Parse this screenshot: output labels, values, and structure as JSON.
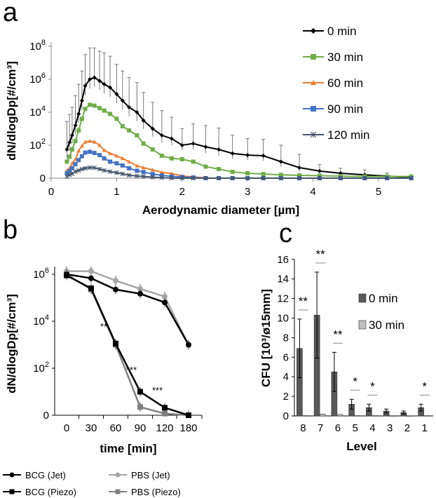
{
  "chart_data": [
    {
      "panel": "a",
      "type": "line",
      "xlabel": "Aerodynamic diameter [µm]",
      "ylabel": "dN/dlogDp[#/cm³]",
      "xlim": [
        0,
        5.6
      ],
      "ylim_log10": [
        0,
        8.5
      ],
      "xticks": [
        "0",
        "1",
        "2",
        "3",
        "4",
        "5"
      ],
      "yticks": [
        {
          "label": "0",
          "log": 0
        },
        {
          "label": "10",
          "sup": "2",
          "log": 2
        },
        {
          "label": "10",
          "sup": "4",
          "log": 4
        },
        {
          "label": "10",
          "sup": "6",
          "log": 6
        },
        {
          "label": "10",
          "sup": "8",
          "log": 8
        }
      ],
      "x": [
        0.24,
        0.28,
        0.32,
        0.37,
        0.42,
        0.47,
        0.52,
        0.59,
        0.66,
        0.74,
        0.81,
        0.9,
        1.0,
        1.09,
        1.19,
        1.31,
        1.41,
        1.55,
        1.69,
        1.84,
        2.0,
        2.17,
        2.36,
        2.56,
        2.77,
        3.0,
        3.24,
        3.51,
        3.79,
        4.1,
        4.42,
        4.79,
        5.13,
        5.5
      ],
      "series": [
        {
          "name": "0 min",
          "color": "#000000",
          "marker": "diamond",
          "log10_values": [
            1.74,
            2.17,
            2.6,
            3.2,
            3.9,
            4.7,
            5.6,
            6.0,
            6.1,
            5.9,
            5.7,
            5.5,
            5.1,
            4.7,
            4.3,
            4.0,
            3.5,
            3.0,
            2.6,
            2.4,
            2.0,
            2.1,
            1.9,
            1.74,
            1.5,
            1.4,
            1.36,
            1.0,
            0.64,
            0.43,
            0.3,
            0.2,
            0.12,
            0.05
          ],
          "log10_err": [
            1.7,
            1.7,
            1.7,
            1.8,
            1.8,
            1.8,
            1.9,
            1.9,
            1.8,
            1.8,
            1.9,
            1.9,
            1.8,
            1.8,
            1.8,
            1.8,
            1.7,
            1.6,
            1.5,
            1.3,
            1.0,
            1.2,
            1.3,
            1.3,
            1.1,
            1.0,
            1.0,
            1.0,
            0.8,
            0.4,
            0.3,
            0.3,
            0.2,
            0.1
          ]
        },
        {
          "name": "30 min",
          "color": "#70ad47",
          "marker": "square",
          "log10_values": [
            1.0,
            1.3,
            1.74,
            2.25,
            2.9,
            3.6,
            4.2,
            4.45,
            4.4,
            4.25,
            4.1,
            3.9,
            3.6,
            3.15,
            2.9,
            2.6,
            2.1,
            1.74,
            1.36,
            1.2,
            1.15,
            1.0,
            0.7,
            0.55,
            0.38,
            0.3,
            0.25,
            0.2,
            0.17,
            0.15,
            0.12,
            0.1,
            0.1,
            0.1
          ]
        },
        {
          "name": "60 min",
          "color": "#ed7d31",
          "marker": "triangle",
          "log10_values": [
            0.47,
            0.6,
            0.9,
            1.15,
            1.66,
            1.96,
            2.2,
            2.25,
            2.2,
            2.0,
            1.7,
            1.5,
            1.36,
            1.2,
            1.0,
            0.75,
            0.64,
            0.5,
            0.35,
            0.28,
            0.14,
            0.07,
            0.02,
            0,
            0,
            0,
            0,
            0,
            0,
            0,
            0,
            0,
            0,
            0
          ]
        },
        {
          "name": "90 min",
          "color": "#4472c4",
          "marker": "square",
          "log10_values": [
            0.3,
            0.43,
            0.6,
            0.85,
            1.1,
            1.33,
            1.55,
            1.6,
            1.53,
            1.4,
            1.2,
            1.0,
            0.9,
            0.77,
            0.6,
            0.45,
            0.37,
            0.25,
            0.17,
            0.11,
            0.07,
            0.04,
            0,
            0,
            0,
            0,
            0,
            0,
            0,
            0,
            0,
            0,
            0,
            0
          ]
        },
        {
          "name": "120  min",
          "color": "#44546a",
          "marker": "star",
          "log10_values": [
            0.1,
            0.2,
            0.27,
            0.4,
            0.47,
            0.55,
            0.6,
            0.64,
            0.63,
            0.55,
            0.47,
            0.4,
            0.33,
            0.26,
            0.18,
            0.13,
            0.1,
            0.06,
            0.03,
            0,
            0,
            0,
            0,
            0,
            0,
            0,
            0,
            0,
            0,
            0,
            0,
            0,
            0,
            0
          ]
        }
      ]
    },
    {
      "panel": "b",
      "type": "line",
      "xlabel": "time [min]",
      "ylabel": "dN/dlogDp[#/cm³]",
      "categories": [
        "0",
        "30",
        "60",
        "90",
        "120",
        "180"
      ],
      "yticks": [
        {
          "label": "0",
          "log": 0
        },
        {
          "label": "10",
          "sup": "2",
          "log": 2
        },
        {
          "label": "10",
          "sup": "4",
          "log": 4
        },
        {
          "label": "10",
          "sup": "6",
          "log": 6
        }
      ],
      "series": [
        {
          "name": "BCG (Jet)",
          "color": "#000000",
          "marker": "circle",
          "log10_values": [
            6.0,
            5.83,
            5.35,
            5.17,
            4.8,
            3.0
          ]
        },
        {
          "name": "PBS (Jet)",
          "color": "#a6a6a6",
          "marker": "circle",
          "log10_values": [
            6.13,
            6.13,
            5.73,
            5.38,
            5.05,
            2.98
          ]
        },
        {
          "name": "BCG (Piezo)",
          "color": "#000000",
          "marker": "square",
          "log10_values": [
            5.95,
            5.4,
            3.05,
            1.0,
            0.32,
            0
          ]
        },
        {
          "name": "PBS (Piezo)",
          "color": "#808080",
          "marker": "square",
          "log10_values": [
            6.0,
            5.35,
            3.0,
            0.35,
            0.07,
            0
          ]
        }
      ],
      "annotations": [
        {
          "category": "60",
          "text": "**"
        },
        {
          "category": "90",
          "text": "***"
        },
        {
          "category": "120",
          "text": "***"
        }
      ]
    },
    {
      "panel": "c",
      "type": "bar",
      "xlabel": "Level",
      "ylabel": "CFU [10³/ø15mm]",
      "ylim": [
        0,
        16
      ],
      "yticks": [
        0,
        2,
        4,
        6,
        8,
        10,
        12,
        14,
        16
      ],
      "categories": [
        "8",
        "7",
        "6",
        "5",
        "4",
        "3",
        "2",
        "1"
      ],
      "series": [
        {
          "name": "0 min",
          "color": "#595959",
          "values": [
            6.9,
            10.3,
            4.5,
            1.2,
            0.85,
            0.5,
            0.35,
            0.85
          ],
          "err": [
            3.0,
            4.4,
            2.0,
            0.5,
            0.35,
            0.2,
            0.15,
            0.35
          ]
        },
        {
          "name": "30 min",
          "color": "#bfbfbf",
          "values": [
            0.05,
            0.2,
            0.15,
            0.05,
            0.05,
            0.03,
            0.02,
            0.05
          ],
          "err": [
            0,
            0,
            0,
            0,
            0,
            0,
            0,
            0
          ]
        }
      ],
      "significance": [
        "**",
        "**",
        "**",
        "*",
        "*",
        "",
        "",
        "*"
      ]
    }
  ],
  "panels": {
    "a": "a",
    "b": "b",
    "c": "c"
  }
}
